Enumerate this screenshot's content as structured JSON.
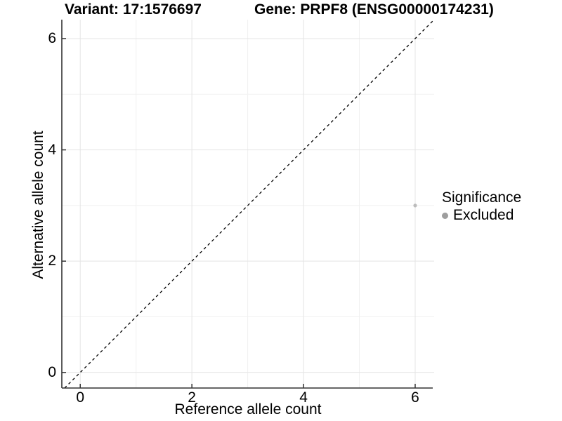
{
  "chart_data": {
    "type": "scatter",
    "titles": {
      "left": "Variant: 17:1576697",
      "right": "Gene: PRPF8 (ENSG00000174231)"
    },
    "xlabel": "Reference allele count",
    "ylabel": "Alternative allele count",
    "x_ticks": [
      0,
      2,
      4,
      6
    ],
    "y_ticks": [
      0,
      2,
      4,
      6
    ],
    "x_minor_ticks": [
      1,
      3,
      5
    ],
    "y_minor_ticks": [
      1,
      3,
      5
    ],
    "x_domain": [
      -0.33,
      6.34
    ],
    "y_domain": [
      -0.28,
      6.34
    ],
    "grid": true,
    "identity_line": {
      "style": "dashed",
      "equation": "y = x",
      "color": "#000000"
    },
    "points": [
      {
        "x": 6,
        "y": 3,
        "series": "Excluded",
        "color": "#bcbcbc",
        "radius": 2.6
      }
    ],
    "legend": {
      "title": "Significance",
      "position": "right",
      "entries": [
        {
          "label": "Excluded",
          "color": "#9e9e9e"
        }
      ]
    },
    "colors": {
      "axis": "#333333",
      "grid_major": "#e4e4e4",
      "grid_minor": "#f1f1f1",
      "background": "#ffffff",
      "text": "#000000"
    }
  }
}
